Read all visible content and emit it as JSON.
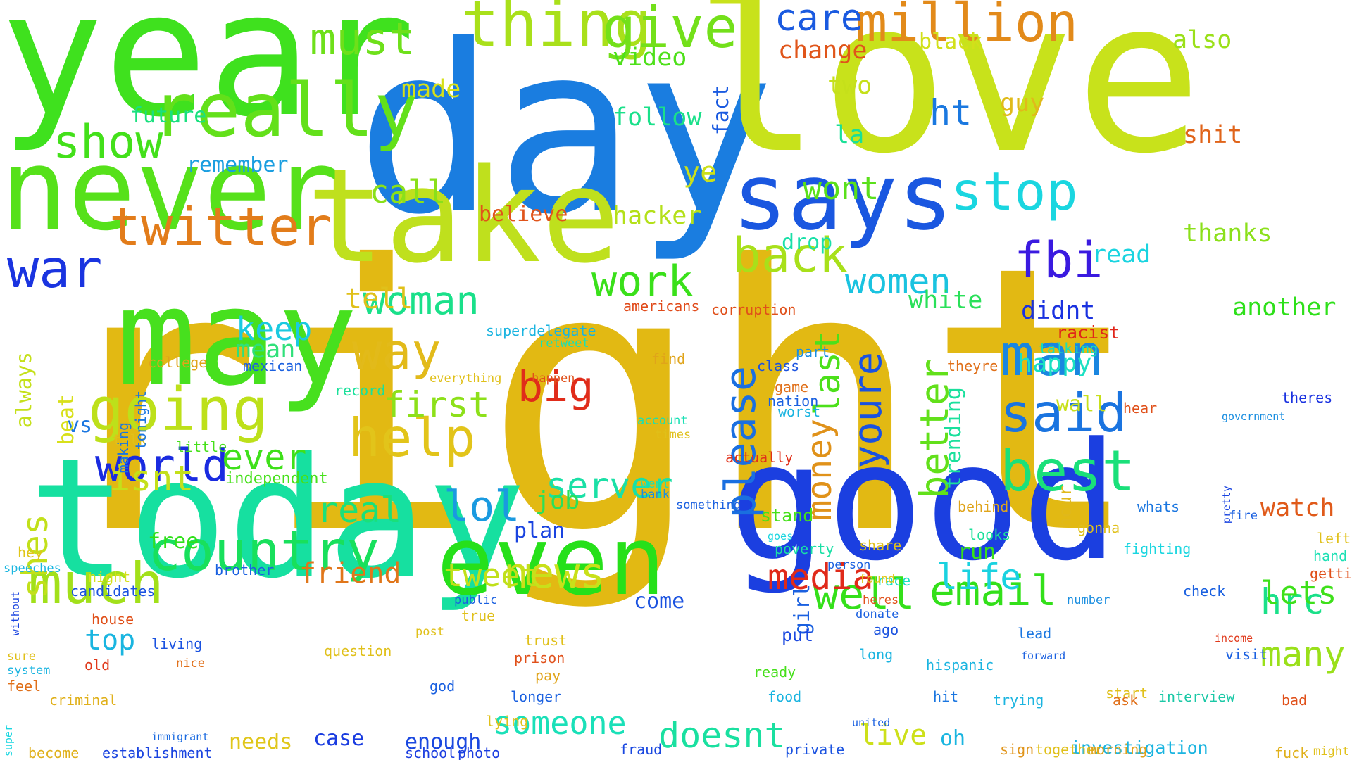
{
  "words": [
    {
      "text": "right",
      "color": "#e2b913"
    },
    {
      "text": "day",
      "color": "#1a7de0"
    },
    {
      "text": "love",
      "color": "#c8e21b"
    },
    {
      "text": "year",
      "color": "#3fe11e"
    },
    {
      "text": "good",
      "color": "#1b3fe0"
    },
    {
      "text": "today",
      "color": "#16e0a0"
    },
    {
      "text": "take",
      "color": "#bfe01d"
    },
    {
      "text": "never",
      "color": "#56e11a"
    },
    {
      "text": "may",
      "color": "#47e01e"
    },
    {
      "text": "says",
      "color": "#1a57e0"
    },
    {
      "text": "even",
      "color": "#26e01a"
    },
    {
      "text": "thing",
      "color": "#a9e01a"
    },
    {
      "text": "really",
      "color": "#63e01a"
    },
    {
      "text": "going",
      "color": "#bde01a"
    },
    {
      "text": "much",
      "color": "#a2e01a"
    },
    {
      "text": "country",
      "color": "#18e05c"
    },
    {
      "text": "twitter",
      "color": "#e27c1a"
    },
    {
      "text": "war",
      "color": "#1a34e0"
    },
    {
      "text": "show",
      "color": "#43e01a"
    },
    {
      "text": "help",
      "color": "#e2c41a"
    },
    {
      "text": "way",
      "color": "#e2ba1a"
    },
    {
      "text": "work",
      "color": "#3ae01a"
    },
    {
      "text": "stop",
      "color": "#1ad6e0"
    },
    {
      "text": "give",
      "color": "#73e01a"
    },
    {
      "text": "million",
      "color": "#e28a1a"
    },
    {
      "text": "care",
      "color": "#1a5ae0"
    },
    {
      "text": "fbi",
      "color": "#3a1ae0"
    },
    {
      "text": "man",
      "color": "#1a86e0"
    },
    {
      "text": "back",
      "color": "#a8e01a"
    },
    {
      "text": "women",
      "color": "#1ac3e0"
    },
    {
      "text": "said",
      "color": "#1a74e0"
    },
    {
      "text": "best",
      "color": "#1ae07a"
    },
    {
      "text": "email",
      "color": "#33e01a"
    },
    {
      "text": "well",
      "color": "#34e01a"
    },
    {
      "text": "world",
      "color": "#1a2be0"
    },
    {
      "text": "woman",
      "color": "#1ae08a"
    },
    {
      "text": "must",
      "color": "#6ee01a"
    },
    {
      "text": "news",
      "color": "#c9e01a"
    },
    {
      "text": "big",
      "color": "#e02c1a"
    },
    {
      "text": "first",
      "color": "#8de01a"
    },
    {
      "text": "server",
      "color": "#1ae0a6"
    },
    {
      "text": "please",
      "color": "#1a6fe0"
    },
    {
      "text": "youre",
      "color": "#1a52e0"
    },
    {
      "text": "better",
      "color": "#62e01a"
    },
    {
      "text": "life",
      "color": "#1ad2e0"
    },
    {
      "text": "media",
      "color": "#e02a1a"
    },
    {
      "text": "money",
      "color": "#e0921a"
    },
    {
      "text": "someone",
      "color": "#1ae0b8"
    },
    {
      "text": "doesnt",
      "color": "#1ae0a0"
    },
    {
      "text": "friend",
      "color": "#e0761a"
    },
    {
      "text": "tweet",
      "color": "#c0e01a"
    },
    {
      "text": "real",
      "color": "#1ae07a"
    },
    {
      "text": "shes",
      "color": "#c2e01a"
    },
    {
      "text": "lol",
      "color": "#1a9ae0"
    },
    {
      "text": "hrc",
      "color": "#1ae089"
    },
    {
      "text": "many",
      "color": "#9ae01a"
    },
    {
      "text": "lets",
      "color": "#3ee01a"
    },
    {
      "text": "watch",
      "color": "#e05a1a"
    },
    {
      "text": "ever",
      "color": "#3fe01a"
    },
    {
      "text": "isnt",
      "color": "#c4e01a"
    },
    {
      "text": "last",
      "color": "#4ce01a"
    },
    {
      "text": "live",
      "color": "#cde01a"
    },
    {
      "text": "top",
      "color": "#1ab5e0"
    },
    {
      "text": "keep",
      "color": "#1acae0"
    },
    {
      "text": "mean",
      "color": "#30e07a"
    },
    {
      "text": "tell",
      "color": "#e0c01a"
    },
    {
      "text": "call",
      "color": "#8ae01a"
    },
    {
      "text": "wont",
      "color": "#5ae01a"
    },
    {
      "text": "hacker",
      "color": "#b4e01a"
    },
    {
      "text": "believe",
      "color": "#e0541a"
    },
    {
      "text": "video",
      "color": "#4ee01a"
    },
    {
      "text": "follow",
      "color": "#1ae08a"
    },
    {
      "text": "made",
      "color": "#d6e01a"
    },
    {
      "text": "future",
      "color": "#1ae07f"
    },
    {
      "text": "remember",
      "color": "#1a9ee0"
    },
    {
      "text": "change",
      "color": "#e0551a"
    },
    {
      "text": "black",
      "color": "#d2e01a"
    },
    {
      "text": "also",
      "color": "#9be01a"
    },
    {
      "text": "shit",
      "color": "#e0641a"
    },
    {
      "text": "thanks",
      "color": "#8be01a"
    },
    {
      "text": "read",
      "color": "#1ad4e0"
    },
    {
      "text": "another",
      "color": "#2ee01a"
    },
    {
      "text": "white",
      "color": "#2ae05a"
    },
    {
      "text": "didnt",
      "color": "#1a32e0"
    },
    {
      "text": "happy",
      "color": "#1ae0c2"
    },
    {
      "text": "racist",
      "color": "#e0261a"
    },
    {
      "text": "two",
      "color": "#c5e01a"
    },
    {
      "text": "guy",
      "color": "#e0ba1a"
    },
    {
      "text": "ht",
      "color": "#1a78e0"
    },
    {
      "text": "fact",
      "color": "#1a5ae0"
    },
    {
      "text": "ye",
      "color": "#cbe01a"
    },
    {
      "text": "la",
      "color": "#1ae097"
    },
    {
      "text": "job",
      "color": "#2ae05a"
    },
    {
      "text": "plan",
      "color": "#1a44e0"
    },
    {
      "text": "come",
      "color": "#1a52e0"
    },
    {
      "text": "enough",
      "color": "#1a48e0"
    },
    {
      "text": "case",
      "color": "#1a3ce0"
    },
    {
      "text": "needs",
      "color": "#e0c61a"
    },
    {
      "text": "independent",
      "color": "#46e01a"
    },
    {
      "text": "free",
      "color": "#30e01a"
    },
    {
      "text": "vs",
      "color": "#1a76e0"
    },
    {
      "text": "beat",
      "color": "#d8e01a"
    },
    {
      "text": "always",
      "color": "#c5e01a"
    },
    {
      "text": "drop",
      "color": "#1ae0a8"
    },
    {
      "text": "stand",
      "color": "#46e01a"
    },
    {
      "text": "run",
      "color": "#39e01a"
    },
    {
      "text": "looks",
      "color": "#1ae09a"
    },
    {
      "text": "girl",
      "color": "#1a60e0"
    },
    {
      "text": "put",
      "color": "#1a48e0"
    },
    {
      "text": "oh",
      "color": "#1ab5e0"
    },
    {
      "text": "trending",
      "color": "#1ae09c"
    },
    {
      "text": "hour",
      "color": "#e0b81a"
    },
    {
      "text": "wall",
      "color": "#c8e01a"
    },
    {
      "text": "theres",
      "color": "#1a32e0"
    },
    {
      "text": "investigation",
      "color": "#1ab4e0"
    },
    {
      "text": "interview",
      "color": "#1ac8a6"
    },
    {
      "text": "together",
      "color": "#e0c01a"
    },
    {
      "text": "sign",
      "color": "#e0941a"
    },
    {
      "text": "morning",
      "color": "#e0a01a"
    },
    {
      "text": "private",
      "color": "#1a52e0"
    },
    {
      "text": "fraud",
      "color": "#1a48e0"
    },
    {
      "text": "photo",
      "color": "#1a3ce0"
    },
    {
      "text": "school",
      "color": "#1a3ce0"
    },
    {
      "text": "establishment",
      "color": "#1a44e0"
    },
    {
      "text": "become",
      "color": "#e0b01a"
    },
    {
      "text": "immigrant",
      "color": "#1a6ae0"
    },
    {
      "text": "super",
      "color": "#1ad6e0"
    },
    {
      "text": "criminal",
      "color": "#e0b01a"
    },
    {
      "text": "feel",
      "color": "#e0701a"
    },
    {
      "text": "old",
      "color": "#e0381a"
    },
    {
      "text": "living",
      "color": "#1a52e0"
    },
    {
      "text": "house",
      "color": "#e0501a"
    },
    {
      "text": "brother",
      "color": "#1a60e0"
    },
    {
      "text": "night",
      "color": "#d6e01a"
    },
    {
      "text": "candidates",
      "color": "#1a52e0"
    },
    {
      "text": "hey",
      "color": "#e0c61a"
    },
    {
      "text": "speeches",
      "color": "#1ab6e0"
    },
    {
      "text": "without",
      "color": "#1a44e0"
    },
    {
      "text": "talk",
      "color": "#e0c01a"
    },
    {
      "text": "little",
      "color": "#46e01a"
    },
    {
      "text": "making",
      "color": "#1a76e0"
    },
    {
      "text": "tonight",
      "color": "#1a76e0"
    },
    {
      "text": "college",
      "color": "#e0a41a"
    },
    {
      "text": "mexican",
      "color": "#1a60e0"
    },
    {
      "text": "record",
      "color": "#1ae09a"
    },
    {
      "text": "americans",
      "color": "#e04a1a"
    },
    {
      "text": "corruption",
      "color": "#e0501a"
    },
    {
      "text": "superdelegate",
      "color": "#1ab4e0"
    },
    {
      "text": "retweet",
      "color": "#1ae0b4"
    },
    {
      "text": "everything",
      "color": "#e0c01a"
    },
    {
      "text": "happen",
      "color": "#e0501a"
    },
    {
      "text": "find",
      "color": "#e0a41a"
    },
    {
      "text": "class",
      "color": "#1a52e0"
    },
    {
      "text": "nation",
      "color": "#1a60e0"
    },
    {
      "text": "actually",
      "color": "#e0301a"
    },
    {
      "text": "worst",
      "color": "#1ab4e0"
    },
    {
      "text": "account",
      "color": "#1ae0b4"
    },
    {
      "text": "times",
      "color": "#e0c01a"
    },
    {
      "text": "went",
      "color": "#1ae0b4"
    },
    {
      "text": "bank",
      "color": "#1a8ee0"
    },
    {
      "text": "something",
      "color": "#1a60e0"
    },
    {
      "text": "goes",
      "color": "#1ad6e0"
    },
    {
      "text": "poverty",
      "color": "#1ae0a6"
    },
    {
      "text": "part",
      "color": "#1a8ee0"
    },
    {
      "text": "game",
      "color": "#e0701a"
    },
    {
      "text": "talking",
      "color": "#1ae0b4"
    },
    {
      "text": "theyre",
      "color": "#e0701a"
    },
    {
      "text": "hear",
      "color": "#e0501a"
    },
    {
      "text": "government",
      "color": "#1a8ee0"
    },
    {
      "text": "fire",
      "color": "#1a60e0"
    },
    {
      "text": "pretty",
      "color": "#1a44e0"
    },
    {
      "text": "left",
      "color": "#e0c01a"
    },
    {
      "text": "hand",
      "color": "#1ae0b4"
    },
    {
      "text": "getting",
      "color": "#e0501a"
    },
    {
      "text": "check",
      "color": "#1a60e0"
    },
    {
      "text": "fighting",
      "color": "#1ad6e0"
    },
    {
      "text": "gonna",
      "color": "#e0c01a"
    },
    {
      "text": "whats",
      "color": "#1a76e0"
    },
    {
      "text": "behind",
      "color": "#e0a41a"
    },
    {
      "text": "share",
      "color": "#e0c01a"
    },
    {
      "text": "race",
      "color": "#1ae0c2"
    },
    {
      "text": "number",
      "color": "#1a8ee0"
    },
    {
      "text": "lead",
      "color": "#1a76e0"
    },
    {
      "text": "forward",
      "color": "#1a60e0"
    },
    {
      "text": "income",
      "color": "#e0381a"
    },
    {
      "text": "visit",
      "color": "#1a60e0"
    },
    {
      "text": "ago",
      "color": "#1a52e0"
    },
    {
      "text": "hispanic",
      "color": "#1ab4e0"
    },
    {
      "text": "hit",
      "color": "#1a76e0"
    },
    {
      "text": "trying",
      "color": "#1ab4e0"
    },
    {
      "text": "start",
      "color": "#e0c01a"
    },
    {
      "text": "ask",
      "color": "#e0701a"
    },
    {
      "text": "bad",
      "color": "#e0501a"
    },
    {
      "text": "fuck",
      "color": "#e0b01a"
    },
    {
      "text": "might",
      "color": "#e0c01a"
    },
    {
      "text": "united",
      "color": "#1a60e0"
    },
    {
      "text": "long",
      "color": "#1ab4e0"
    },
    {
      "text": "donate",
      "color": "#1a60e0"
    },
    {
      "text": "heres",
      "color": "#e0501a"
    },
    {
      "text": "found",
      "color": "#e0c61a"
    },
    {
      "text": "person",
      "color": "#1a60e0"
    },
    {
      "text": "food",
      "color": "#1ab4e0"
    },
    {
      "text": "ready",
      "color": "#46e01a"
    },
    {
      "text": "prison",
      "color": "#e0501a"
    },
    {
      "text": "pay",
      "color": "#e0a41a"
    },
    {
      "text": "trust",
      "color": "#e0c01a"
    },
    {
      "text": "longer",
      "color": "#1a60e0"
    },
    {
      "text": "lying",
      "color": "#e0c01a"
    },
    {
      "text": "god",
      "color": "#1a60e0"
    },
    {
      "text": "true",
      "color": "#e0c01a"
    },
    {
      "text": "public",
      "color": "#1a60e0"
    },
    {
      "text": "post",
      "color": "#e0c01a"
    },
    {
      "text": "question",
      "color": "#e0c01a"
    },
    {
      "text": "nice",
      "color": "#e0701a"
    },
    {
      "text": "sure",
      "color": "#e0c01a"
    },
    {
      "text": "system",
      "color": "#1ab4e0"
    }
  ]
}
